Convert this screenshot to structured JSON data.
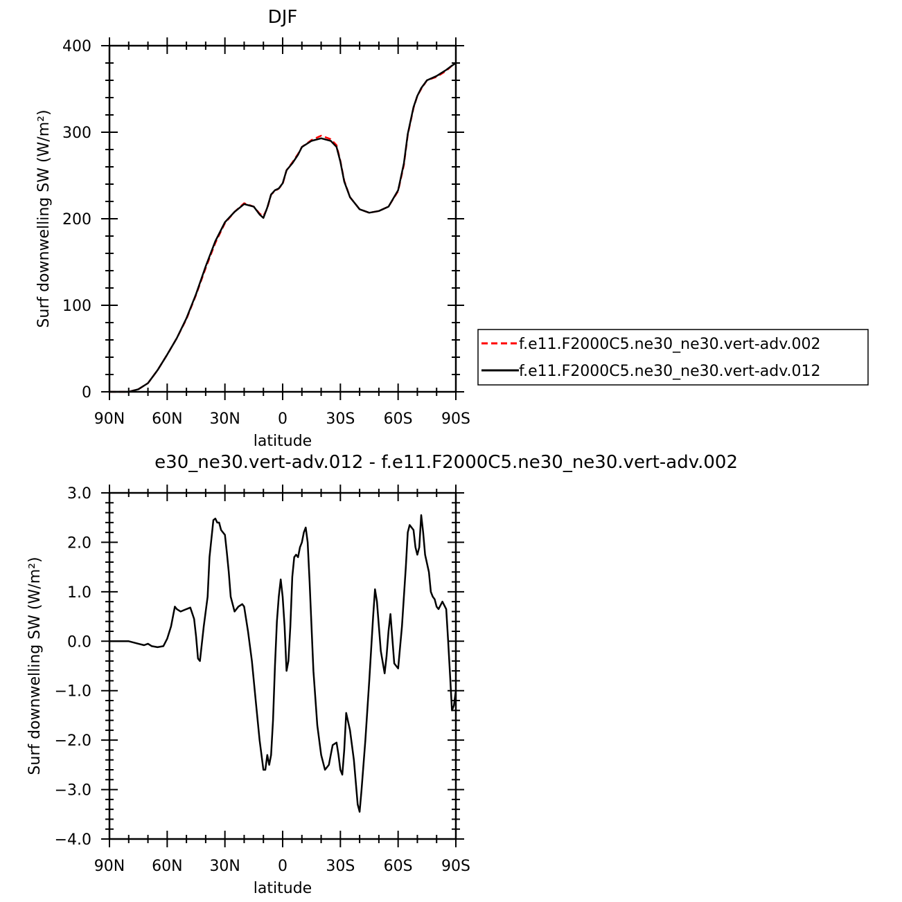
{
  "chart_data": [
    {
      "type": "line",
      "title": "DJF",
      "xlabel": "latitude",
      "ylabel": "Surf downwelling SW (W/m²)",
      "xlim": [
        90,
        -90
      ],
      "ylim": [
        0,
        400
      ],
      "x_ticks": [
        {
          "value": 90,
          "label": "90N"
        },
        {
          "value": 60,
          "label": "60N"
        },
        {
          "value": 30,
          "label": "30N"
        },
        {
          "value": 0,
          "label": "0"
        },
        {
          "value": -30,
          "label": "30S"
        },
        {
          "value": -60,
          "label": "60S"
        },
        {
          "value": -90,
          "label": "90S"
        }
      ],
      "y_ticks": [
        {
          "value": 0,
          "label": "0"
        },
        {
          "value": 100,
          "label": "100"
        },
        {
          "value": 200,
          "label": "200"
        },
        {
          "value": 300,
          "label": "300"
        },
        {
          "value": 400,
          "label": "400"
        }
      ],
      "legend": {
        "position": "right"
      },
      "series": [
        {
          "name": "f.e11.F2000C5.ne30_ne30.vert-adv.002",
          "color": "#ff0000",
          "dash": true,
          "x": [
            90,
            85,
            80,
            75,
            70,
            65,
            60,
            55,
            50,
            45,
            40,
            35,
            30,
            25,
            20,
            15,
            12,
            10,
            8,
            6,
            4,
            2,
            0,
            -2,
            -5,
            -8,
            -10,
            -15,
            -20,
            -25,
            -28,
            -30,
            -32,
            -35,
            -40,
            -45,
            -50,
            -55,
            -60,
            -63,
            -65,
            -68,
            -70,
            -72,
            -75,
            -80,
            -85,
            -88,
            -90
          ],
          "y": [
            0,
            0,
            0,
            3,
            10,
            25,
            43,
            62,
            84,
            112,
            143,
            172,
            195,
            208,
            218,
            214,
            206,
            203,
            212,
            228,
            232,
            235,
            240,
            256,
            265,
            275,
            283,
            291,
            296,
            292,
            285,
            267,
            244,
            225,
            211,
            207,
            209,
            214,
            232,
            262,
            297,
            328,
            342,
            350,
            360,
            364,
            371,
            377,
            380
          ]
        },
        {
          "name": "f.e11.F2000C5.ne30_ne30.vert-adv.012",
          "color": "#000000",
          "dash": false,
          "x": [
            90,
            85,
            80,
            75,
            70,
            65,
            60,
            55,
            50,
            45,
            40,
            35,
            30,
            25,
            20,
            15,
            12,
            10,
            8,
            6,
            4,
            2,
            0,
            -2,
            -5,
            -8,
            -10,
            -15,
            -20,
            -25,
            -28,
            -30,
            -32,
            -35,
            -40,
            -45,
            -50,
            -55,
            -60,
            -63,
            -65,
            -68,
            -70,
            -72,
            -75,
            -80,
            -85,
            -88,
            -90
          ],
          "y": [
            0,
            0,
            0,
            3,
            10,
            25,
            43,
            62,
            85,
            113,
            145,
            174,
            196,
            208,
            217,
            214,
            205,
            201,
            213,
            228,
            233,
            235,
            241,
            256,
            264,
            274,
            283,
            290,
            293,
            290,
            283,
            266,
            243,
            225,
            211,
            207,
            209,
            214,
            233,
            264,
            298,
            329,
            342,
            351,
            360,
            365,
            372,
            377,
            380
          ]
        }
      ]
    },
    {
      "type": "line",
      "title": "e30_ne30.vert-adv.012 - f.e11.F2000C5.ne30_ne30.vert-adv.002",
      "xlabel": "latitude",
      "ylabel": "Surf downwelling SW (W/m²)",
      "xlim": [
        90,
        -90
      ],
      "ylim": [
        -4,
        3
      ],
      "x_ticks": [
        {
          "value": 90,
          "label": "90N"
        },
        {
          "value": 60,
          "label": "60N"
        },
        {
          "value": 30,
          "label": "30N"
        },
        {
          "value": 0,
          "label": "0"
        },
        {
          "value": -30,
          "label": "30S"
        },
        {
          "value": -60,
          "label": "60S"
        },
        {
          "value": -90,
          "label": "90S"
        }
      ],
      "y_ticks": [
        {
          "value": -4,
          "label": "−4.0"
        },
        {
          "value": -3,
          "label": "−3.0"
        },
        {
          "value": -2,
          "label": "−2.0"
        },
        {
          "value": -1,
          "label": "−1.0"
        },
        {
          "value": 0,
          "label": "0.0"
        },
        {
          "value": 1,
          "label": "1.0"
        },
        {
          "value": 2,
          "label": "2.0"
        },
        {
          "value": 3,
          "label": "3.0"
        }
      ],
      "series": [
        {
          "color": "#000000",
          "x": [
            90,
            80,
            75,
            72,
            70,
            68,
            65,
            62,
            60,
            58,
            56,
            55,
            53,
            50,
            48,
            46,
            45,
            44,
            43,
            41,
            39,
            38,
            36,
            35,
            34,
            33,
            32,
            30,
            29,
            28,
            27,
            26,
            25,
            23,
            21,
            20,
            18,
            16,
            14,
            12,
            10,
            9,
            8,
            7,
            6,
            5,
            4,
            3,
            2,
            1,
            0,
            -1,
            -2,
            -3,
            -4,
            -5,
            -6,
            -7,
            -8,
            -9,
            -10,
            -11,
            -12,
            -13,
            -14,
            -16,
            -18,
            -20,
            -22,
            -24,
            -25,
            -26,
            -28,
            -29,
            -30,
            -31,
            -32,
            -33,
            -35,
            -37,
            -39,
            -40,
            -41,
            -43,
            -45,
            -47,
            -48,
            -49,
            -51,
            -53,
            -54,
            -55,
            -56,
            -58,
            -59,
            -60,
            -62,
            -64,
            -65,
            -66,
            -68,
            -69,
            -70,
            -71,
            -72,
            -73,
            -74,
            -76,
            -77,
            -78,
            -79,
            -80,
            -81,
            -83,
            -85,
            -86,
            -87,
            -88,
            -89,
            -90
          ],
          "y": [
            0,
            0,
            -0.05,
            -0.08,
            -0.05,
            -0.1,
            -0.12,
            -0.1,
            0.05,
            0.3,
            0.7,
            0.65,
            0.6,
            0.65,
            0.68,
            0.45,
            0.1,
            -0.35,
            -0.4,
            0.3,
            0.9,
            1.7,
            2.45,
            2.48,
            2.4,
            2.4,
            2.25,
            2.15,
            1.8,
            1.4,
            0.9,
            0.75,
            0.6,
            0.7,
            0.75,
            0.7,
            0.2,
            -0.4,
            -1.2,
            -2.0,
            -2.6,
            -2.6,
            -2.3,
            -2.5,
            -2.3,
            -1.6,
            -0.5,
            0.4,
            0.9,
            1.25,
            0.9,
            0.3,
            -0.6,
            -0.4,
            0.3,
            1.3,
            1.7,
            1.75,
            1.7,
            1.9,
            2.0,
            2.2,
            2.3,
            2.0,
            1.2,
            -0.6,
            -1.7,
            -2.3,
            -2.6,
            -2.5,
            -2.3,
            -2.1,
            -2.05,
            -2.3,
            -2.6,
            -2.7,
            -2.2,
            -1.45,
            -1.8,
            -2.4,
            -3.3,
            -3.45,
            -3.0,
            -2.0,
            -0.8,
            0.5,
            1.05,
            0.8,
            -0.2,
            -0.65,
            -0.3,
            0.2,
            0.55,
            -0.45,
            -0.5,
            -0.55,
            0.3,
            1.5,
            2.2,
            2.35,
            2.25,
            1.9,
            1.75,
            1.9,
            2.55,
            2.2,
            1.75,
            1.4,
            1.0,
            0.9,
            0.85,
            0.7,
            0.65,
            0.8,
            0.65,
            0.0,
            -0.7,
            -1.4,
            -1.3,
            -1.0
          ]
        }
      ]
    }
  ]
}
